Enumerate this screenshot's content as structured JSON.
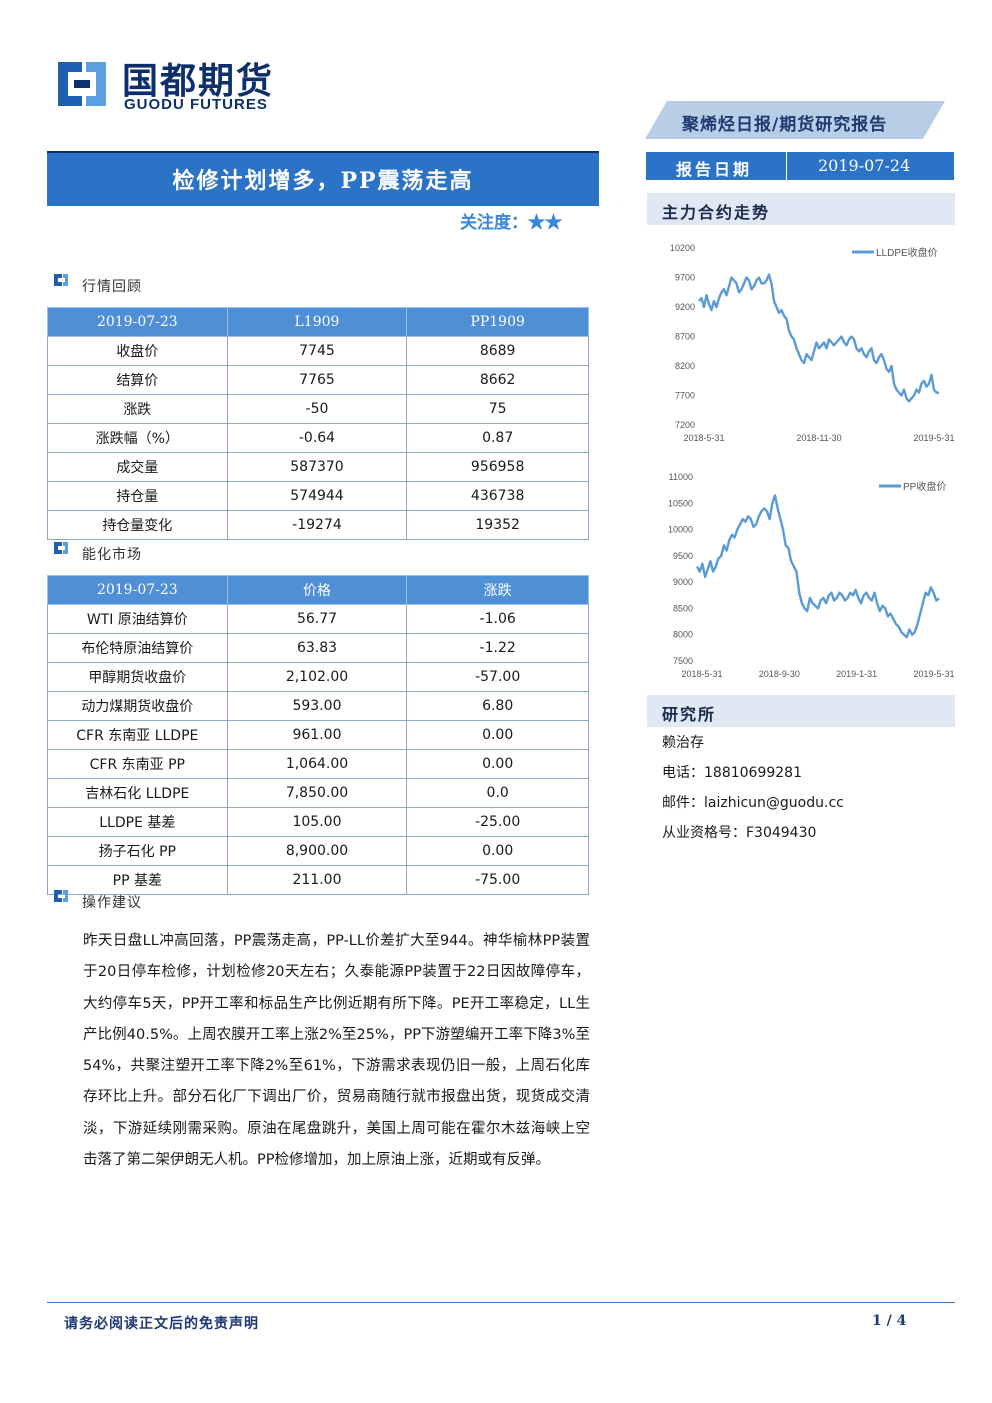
{
  "brand": {
    "name_cn": "国都期货",
    "name_en": "GUODU FUTURES",
    "accent": "#2a73c6",
    "dark": "#0d2f6b"
  },
  "header": {
    "report_type": "聚烯烃日报/期货研究报告",
    "date_label": "报告日期",
    "date_value": "2019-07-24"
  },
  "title": "检修计划增多，PP震荡走高",
  "attention_label": "关注度：",
  "attention_stars": "★★",
  "sections": {
    "market_review": "行情回顾",
    "energy_market": "能化市场",
    "advice": "操作建议"
  },
  "table1": {
    "headers": [
      "2019-07-23",
      "L1909",
      "PP1909"
    ],
    "rows": [
      [
        "收盘价",
        "7745",
        "8689"
      ],
      [
        "结算价",
        "7765",
        "8662"
      ],
      [
        "涨跌",
        "-50",
        "75"
      ],
      [
        "涨跌幅（%）",
        "-0.64",
        "0.87"
      ],
      [
        "成交量",
        "587370",
        "956958"
      ],
      [
        "持仓量",
        "574944",
        "436738"
      ],
      [
        "持仓量变化",
        "-19274",
        "19352"
      ]
    ]
  },
  "table2": {
    "headers": [
      "2019-07-23",
      "价格",
      "涨跌"
    ],
    "rows": [
      [
        "WTI 原油结算价",
        "56.77",
        "-1.06"
      ],
      [
        "布伦特原油结算价",
        "63.83",
        "-1.22"
      ],
      [
        "甲醇期货收盘价",
        "2,102.00",
        "-57.00"
      ],
      [
        "动力煤期货收盘价",
        "593.00",
        "6.80"
      ],
      [
        "CFR 东南亚 LLDPE",
        "961.00",
        "0.00"
      ],
      [
        "CFR 东南亚 PP",
        "1,064.00",
        "0.00"
      ],
      [
        "吉林石化 LLDPE",
        "7,850.00",
        "0.0"
      ],
      [
        "LLDPE 基差",
        "105.00",
        "-25.00"
      ],
      [
        "扬子石化 PP",
        "8,900.00",
        "0.00"
      ],
      [
        "PP 基差",
        "211.00",
        "-75.00"
      ]
    ]
  },
  "advice_text": "昨天日盘LL冲高回落，PP震荡走高，PP-LL价差扩大至944。神华榆林PP装置于20日停车检修，计划检修20天左右；久泰能源PP装置于22日因故障停车，大约停车5天，PP开工率和标品生产比例近期有所下降。PE开工率稳定，LL生产比例40.5%。上周农膜开工率上涨2%至25%，PP下游塑编开工率下降3%至54%，共聚注塑开工率下降2%至61%，下游需求表现仍旧一般，上周石化库存环比上升。部分石化厂下调出厂价，贸易商随行就市报盘出货，现货成交清淡，下游延续刚需采购。原油在尾盘跳升，美国上周可能在霍尔木兹海峡上空击落了第二架伊朗无人机。PP检修增加，加上原油上涨，近期或有反弹。",
  "sidebar": {
    "trend_title": "主力合约走势",
    "research_title": "研究所",
    "analyst": "赖治存",
    "phone": "电话：18810699281",
    "email": "邮件：laizhicun@guodu.cc",
    "license": "从业资格号：F3049430"
  },
  "chart_data": [
    {
      "type": "line",
      "title": "",
      "series": [
        {
          "name": "LLDPE收盘价",
          "color": "#5b9bd5",
          "values": [
            9300,
            9350,
            9200,
            9400,
            9250,
            9150,
            9300,
            9200,
            9350,
            9450,
            9500,
            9400,
            9550,
            9700,
            9650,
            9600,
            9450,
            9500,
            9600,
            9700,
            9650,
            9500,
            9550,
            9650,
            9700,
            9600,
            9600,
            9650,
            9750,
            9600,
            9300,
            9200,
            9100,
            9150,
            9050,
            9000,
            8800,
            8700,
            8650,
            8500,
            8400,
            8300,
            8250,
            8400,
            8350,
            8300,
            8450,
            8600,
            8500,
            8550,
            8600,
            8500,
            8650,
            8600,
            8550,
            8600,
            8650,
            8700,
            8600,
            8550,
            8650,
            8700,
            8650,
            8500,
            8450,
            8500,
            8400,
            8350,
            8450,
            8500,
            8300,
            8250,
            8350,
            8400,
            8300,
            8150,
            8100,
            8200,
            7900,
            7800,
            7750,
            7700,
            7800,
            7650,
            7600,
            7650,
            7700,
            7800,
            7750,
            7900,
            7950,
            7850,
            7900,
            8050,
            7800,
            7750,
            7745
          ]
        }
      ],
      "x_tick_labels": [
        "2018-5-31",
        "2018-11-30",
        "2019-5-31"
      ],
      "y_ticks": [
        7200,
        7700,
        8200,
        8700,
        9200,
        9700,
        10200
      ],
      "ylim": [
        7200,
        10200
      ],
      "legend": "top-right",
      "grid": false
    },
    {
      "type": "line",
      "title": "",
      "series": [
        {
          "name": "PP收盘价",
          "color": "#5b9bd5",
          "values": [
            9300,
            9200,
            9350,
            9100,
            9250,
            9400,
            9200,
            9300,
            9450,
            9500,
            9700,
            9600,
            9800,
            9900,
            9850,
            10000,
            10100,
            10200,
            10150,
            10250,
            10200,
            10050,
            10100,
            10250,
            10350,
            10400,
            10350,
            10200,
            10500,
            10650,
            10400,
            10200,
            10000,
            9700,
            9650,
            9400,
            9300,
            9200,
            8800,
            8600,
            8500,
            8450,
            8700,
            8600,
            8550,
            8500,
            8650,
            8700,
            8600,
            8750,
            8800,
            8650,
            8700,
            8800,
            8750,
            8650,
            8700,
            8800,
            8750,
            8850,
            8700,
            8600,
            8750,
            8800,
            8700,
            8650,
            8800,
            8600,
            8450,
            8550,
            8500,
            8350,
            8400,
            8300,
            8200,
            8150,
            8050,
            8000,
            7950,
            8100,
            8000,
            8050,
            8200,
            8400,
            8600,
            8800,
            8750,
            8900,
            8800,
            8650,
            8689
          ]
        }
      ],
      "x_tick_labels": [
        "2018-5-31",
        "2018-9-30",
        "2019-1-31",
        "2019-5-31"
      ],
      "y_ticks": [
        7500,
        8000,
        8500,
        9000,
        9500,
        10000,
        10500,
        11000
      ],
      "ylim": [
        7500,
        11000
      ],
      "legend": "top-right",
      "grid": false
    }
  ],
  "footer": {
    "disclaimer": "请务必阅读正文后的免责声明",
    "page": "1 / 4"
  }
}
